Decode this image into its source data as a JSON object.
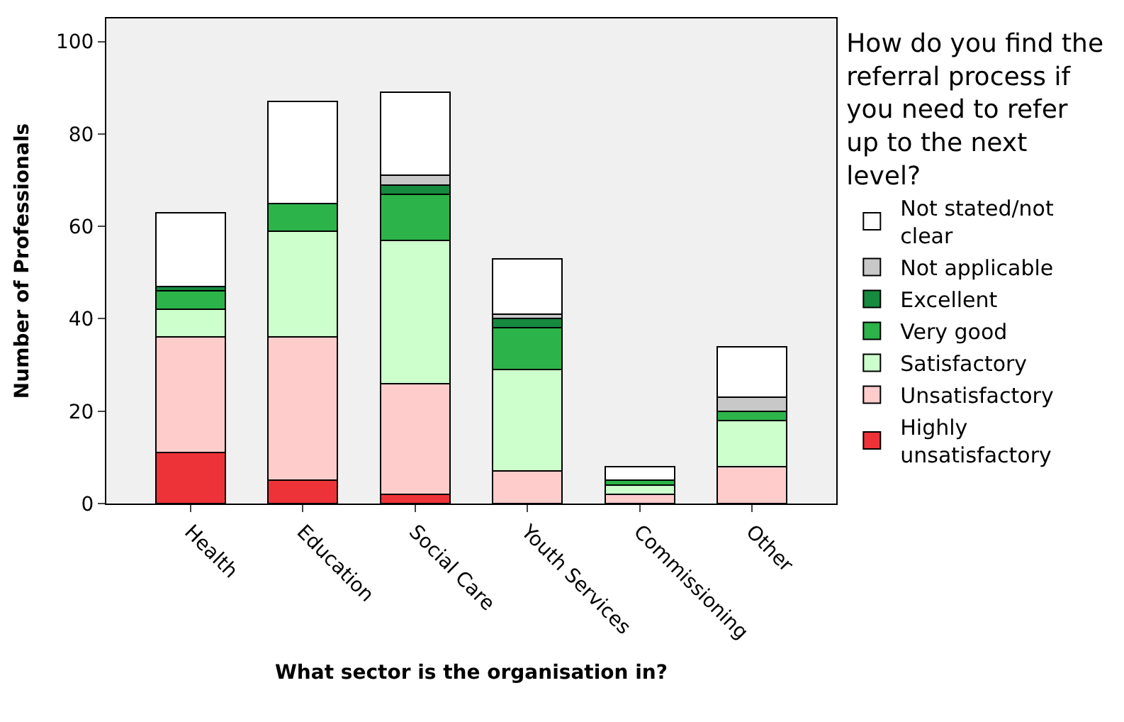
{
  "chart_data": {
    "type": "bar",
    "stacked": true,
    "xlabel": "What sector is the organisation in?",
    "ylabel": "Number of Professionals",
    "legend_title": "How do you find the referral process if you need to refer up to the next level?",
    "legend": "right",
    "grid": false,
    "categories": [
      "Health",
      "Education",
      "Social Care",
      "Youth Services",
      "Commissioning",
      "Other"
    ],
    "ylim": [
      0,
      105
    ],
    "yticks": [
      0,
      20,
      40,
      60,
      80,
      100
    ],
    "series": [
      {
        "name": "Highly unsatisfactory",
        "color": "#ee3338",
        "values": [
          11,
          5,
          2,
          0,
          0,
          0
        ]
      },
      {
        "name": "Unsatisfactory",
        "color": "#ffcccc",
        "values": [
          25,
          31,
          24,
          7,
          2,
          8
        ]
      },
      {
        "name": "Satisfactory",
        "color": "#ccffcc",
        "values": [
          6,
          23,
          31,
          22,
          2,
          10
        ]
      },
      {
        "name": "Very good",
        "color": "#2cb34a",
        "values": [
          4,
          6,
          10,
          9,
          1,
          2
        ]
      },
      {
        "name": "Excellent",
        "color": "#168a3e",
        "values": [
          1,
          0,
          2,
          2,
          0,
          0
        ]
      },
      {
        "name": "Not applicable",
        "color": "#c8c8c8",
        "values": [
          0,
          0,
          2,
          1,
          0,
          3
        ]
      },
      {
        "name": "Not stated/not clear",
        "color": "#ffffff",
        "values": [
          16,
          22,
          18,
          12,
          3,
          11
        ]
      }
    ]
  }
}
